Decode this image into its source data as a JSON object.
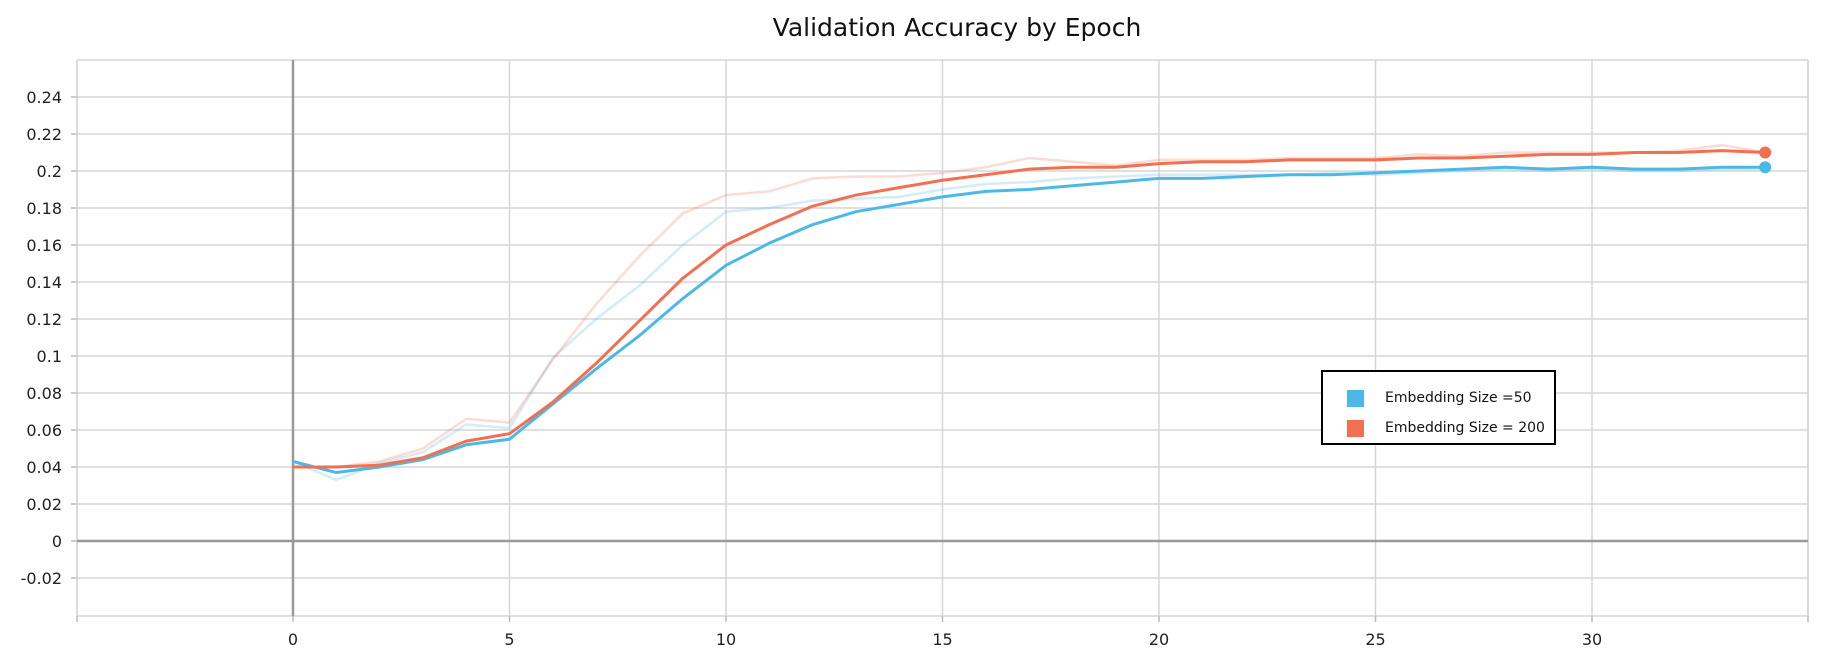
{
  "chart_data": {
    "type": "line",
    "title": "Validation Accuracy by Epoch",
    "xlabel": "",
    "ylabel": "",
    "xlim": [
      -5,
      35
    ],
    "ylim": [
      -0.04,
      0.26
    ],
    "x_ticks": [
      0,
      5,
      10,
      15,
      20,
      25,
      30
    ],
    "y_ticks": [
      -0.02,
      0,
      0.02,
      0.04,
      0.06,
      0.08,
      0.1,
      0.12,
      0.14,
      0.16,
      0.18,
      0.2,
      0.22,
      0.24
    ],
    "x_tick_labels": [
      "0",
      "5",
      "10",
      "15",
      "20",
      "25",
      "30"
    ],
    "y_tick_labels": [
      "-0.02",
      "0",
      "0.02",
      "0.04",
      "0.06",
      "0.08",
      "0.1",
      "0.12",
      "0.14",
      "0.16",
      "0.18",
      "0.2",
      "0.22",
      "0.24"
    ],
    "grid": true,
    "legend_position": "center-right",
    "x": [
      0,
      1,
      2,
      3,
      4,
      5,
      6,
      7,
      8,
      9,
      10,
      11,
      12,
      13,
      14,
      15,
      16,
      17,
      18,
      19,
      20,
      21,
      22,
      23,
      24,
      25,
      26,
      27,
      28,
      29,
      30,
      31,
      32,
      33,
      34
    ],
    "series": [
      {
        "name": "Embedding Size =50",
        "color": "#4db8e8",
        "values": [
          0.043,
          0.037,
          0.04,
          0.044,
          0.052,
          0.055,
          0.074,
          0.093,
          0.111,
          0.131,
          0.149,
          0.161,
          0.171,
          0.178,
          0.182,
          0.186,
          0.189,
          0.19,
          0.192,
          0.194,
          0.196,
          0.196,
          0.197,
          0.198,
          0.198,
          0.199,
          0.2,
          0.201,
          0.202,
          0.201,
          0.202,
          0.201,
          0.201,
          0.202,
          0.202
        ],
        "raw_values": [
          0.043,
          0.033,
          0.042,
          0.048,
          0.063,
          0.061,
          0.099,
          0.12,
          0.138,
          0.16,
          0.178,
          0.18,
          0.184,
          0.185,
          0.186,
          0.19,
          0.193,
          0.194,
          0.196,
          0.197,
          0.198,
          0.198,
          0.198,
          0.198,
          0.199,
          0.198,
          0.199,
          0.2,
          0.201,
          0.2,
          0.201,
          0.2,
          0.2,
          0.201,
          0.201
        ]
      },
      {
        "name": "Embedding Size = 200",
        "color": "#ef7152",
        "values": [
          0.04,
          0.04,
          0.041,
          0.045,
          0.054,
          0.058,
          0.075,
          0.096,
          0.119,
          0.142,
          0.16,
          0.171,
          0.181,
          0.187,
          0.191,
          0.195,
          0.198,
          0.201,
          0.202,
          0.202,
          0.204,
          0.205,
          0.205,
          0.206,
          0.206,
          0.206,
          0.207,
          0.207,
          0.208,
          0.209,
          0.209,
          0.21,
          0.21,
          0.211,
          0.21
        ],
        "raw_values": [
          0.04,
          0.04,
          0.043,
          0.05,
          0.066,
          0.064,
          0.098,
          0.128,
          0.154,
          0.177,
          0.187,
          0.189,
          0.196,
          0.197,
          0.197,
          0.199,
          0.202,
          0.207,
          0.205,
          0.203,
          0.206,
          0.206,
          0.206,
          0.207,
          0.207,
          0.207,
          0.209,
          0.208,
          0.21,
          0.21,
          0.21,
          0.21,
          0.211,
          0.214,
          0.21
        ]
      }
    ]
  }
}
